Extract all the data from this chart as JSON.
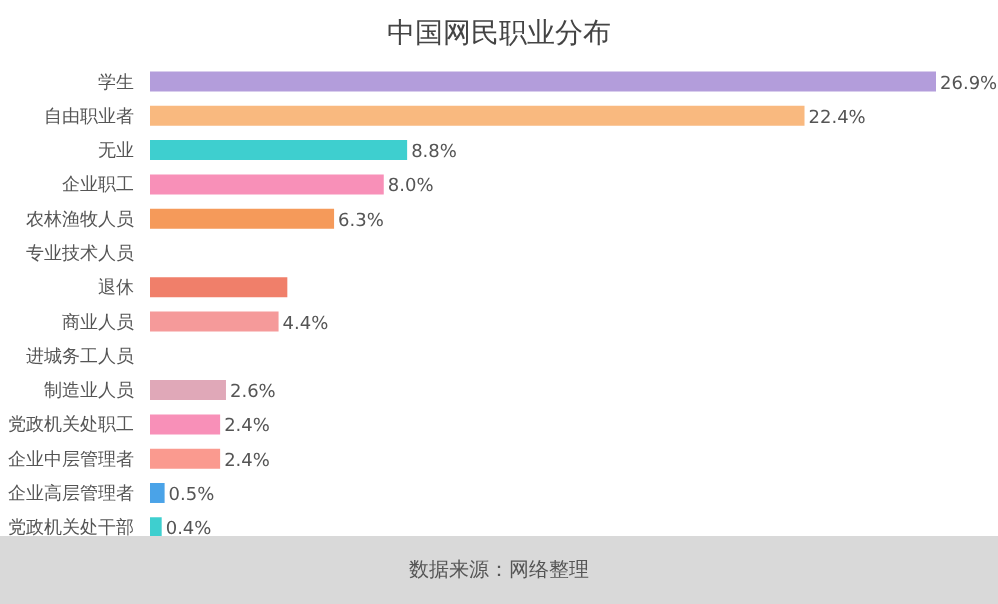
{
  "chart_data": {
    "type": "bar",
    "orientation": "horizontal",
    "tick_labels": false,
    "title": "中国网民职业分布",
    "categories": [
      "学生",
      "自由职业者",
      "无业",
      "企业职工",
      "农林渔牧人员",
      "专业技术人员",
      "退休",
      "商业人员",
      "进城务工人员",
      "制造业人员",
      "党政机关处职工",
      "企业中层管理者",
      "企业高层管理者",
      "党政机关处干部"
    ],
    "values": [
      26.9,
      22.4,
      8.8,
      8.0,
      6.3,
      null,
      4.7,
      4.4,
      null,
      2.6,
      2.4,
      2.4,
      0.5,
      0.4
    ],
    "value_labels": [
      "26.9%",
      "22.4%",
      "8.8%",
      "8.0%",
      "6.3%",
      null,
      null,
      "4.4%",
      null,
      "2.6%",
      "2.4%",
      "2.4%",
      "0.5%",
      "0.4%"
    ],
    "colors": [
      "#b39ddb",
      "#f9b97f",
      "#3ecfcf",
      "#f890b8",
      "#f59a5a",
      "#f2a07a",
      "#f07f6a",
      "#f59a9a",
      "#f0a0b0",
      "#e0a8b8",
      "#f890b8",
      "#fa9a8f",
      "#4aa3e8",
      "#3ecfcf"
    ],
    "annotations": [
      "数据来源：网络整理"
    ]
  }
}
